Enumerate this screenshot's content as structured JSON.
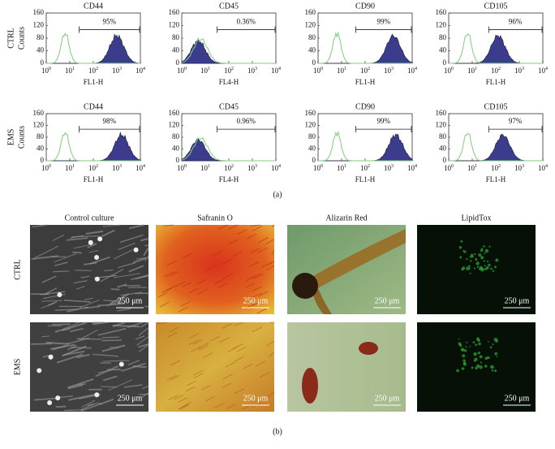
{
  "panel_a": {
    "label": "(a)",
    "row_labels": [
      "CTRL",
      "EMS"
    ],
    "y_label": "Counts",
    "ylim": [
      0,
      160
    ],
    "yticks": [
      0,
      40,
      80,
      120,
      160
    ],
    "xlim": [
      1,
      10000
    ],
    "log_x": true,
    "xticks": [
      {
        "value": 1,
        "label": "10^0"
      },
      {
        "value": 10,
        "label": "10^1"
      },
      {
        "value": 100,
        "label": "10^2"
      },
      {
        "value": 1000,
        "label": "10^3"
      },
      {
        "value": 10000,
        "label": "10^4"
      }
    ],
    "rows": [
      [
        {
          "title": "CD44",
          "xlabel": "FL1-H",
          "gate_label": "95%"
        },
        {
          "title": "CD45",
          "xlabel": "FL4-H",
          "gate_label": "0.36%"
        },
        {
          "title": "CD90",
          "xlabel": "FL1-H",
          "gate_label": "99%"
        },
        {
          "title": "CD105",
          "xlabel": "FL1-H",
          "gate_label": "96%"
        }
      ],
      [
        {
          "title": "CD44",
          "xlabel": "FL1-H",
          "gate_label": "98%"
        },
        {
          "title": "CD45",
          "xlabel": "FL4-H",
          "gate_label": "0.96%"
        },
        {
          "title": "CD90",
          "xlabel": "FL1-H",
          "gate_label": "99%"
        },
        {
          "title": "CD105",
          "xlabel": "FL1-H",
          "gate_label": "97%"
        }
      ]
    ]
  },
  "panel_b": {
    "label": "(b)",
    "columns": [
      "Control culture",
      "Safranin O",
      "Alizarin Red",
      "LipidTox"
    ],
    "row_labels": [
      "CTRL",
      "EMS"
    ],
    "scale_bar": "250 μm"
  }
}
